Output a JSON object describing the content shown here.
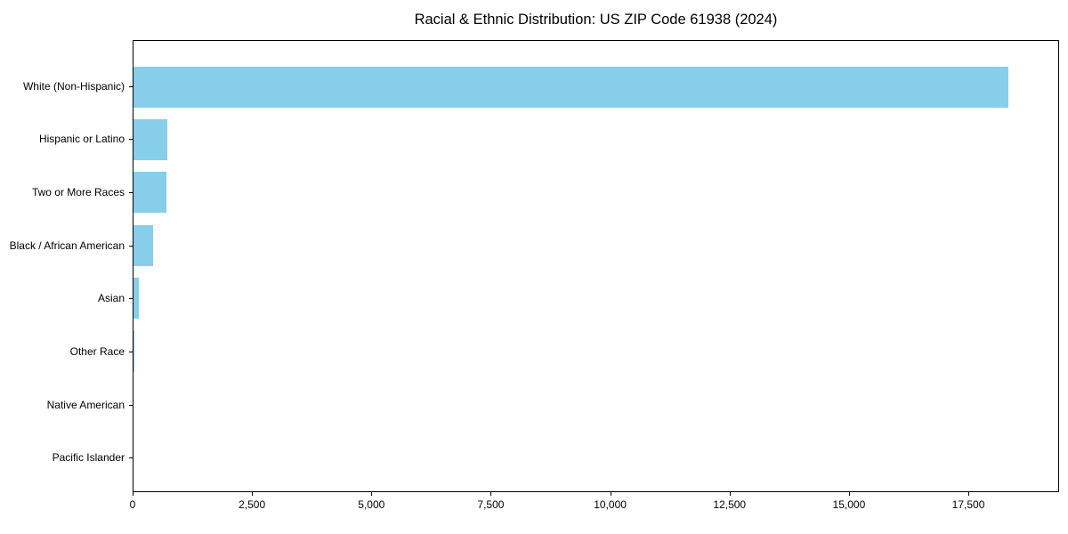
{
  "chart_data": {
    "type": "bar",
    "orientation": "horizontal",
    "title": "Racial & Ethnic Distribution: US ZIP Code 61938 (2024)",
    "categories": [
      "White (Non-Hispanic)",
      "Hispanic or Latino",
      "Two or More Races",
      "Black / African American",
      "Asian",
      "Other Race",
      "Native American",
      "Pacific Islander"
    ],
    "values": [
      18350,
      715,
      685,
      420,
      110,
      15,
      0,
      0
    ],
    "xlabel": "",
    "ylabel": "",
    "xlim": [
      0,
      19400
    ],
    "xticks": [
      0,
      2500,
      5000,
      7500,
      10000,
      12500,
      15000,
      17500
    ],
    "xtick_labels": [
      "0",
      "2,500",
      "5,000",
      "7,500",
      "10,000",
      "12,500",
      "15,000",
      "17,500"
    ],
    "bar_color": "#87CEEB",
    "background_color": "#ffffff",
    "grid": false,
    "legend": false
  }
}
